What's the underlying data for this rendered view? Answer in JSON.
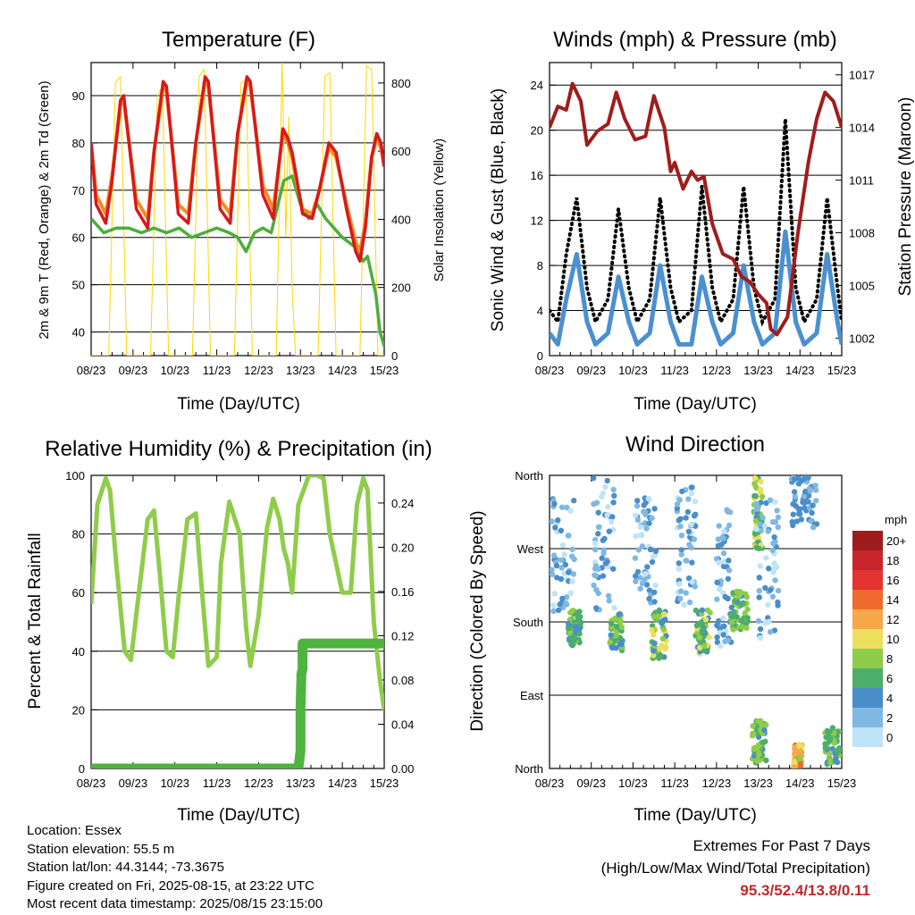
{
  "colors": {
    "t2m": "#d7191c",
    "t9m": "#f68a1e",
    "td2m": "#4cae3a",
    "solar": "#ffd700",
    "wind": "#4a90d0",
    "gust": "#000000",
    "pressure": "#a01c1c",
    "rh": "#8fcc4a",
    "precip": "#4fb340"
  },
  "footer": {
    "location": "Location: Essex",
    "elevation": "Station elevation: 55.5 m",
    "latlon": "Station lat/lon: 44.3144; -73.3675",
    "created": "Figure created on Fri, 2025-08-15, at 23:22 UTC",
    "recent": "Most recent data timestamp: 2025/08/15 23:15:00"
  },
  "extremes": {
    "heading": "Extremes For Past 7 Days",
    "subheading": "(High/Low/Max Wind/Total Precipitation)",
    "values": "95.3/52.4/13.8/0.11"
  },
  "chart_data": [
    {
      "id": "temperature",
      "type": "line",
      "title": "Temperature (F)",
      "xlabel": "Time (Day/UTC)",
      "ylabel": "2m & 9m T (Red, Orange) & 2m Td (Green)",
      "ylabel_right": "Solar Insolation (Yellow)",
      "x_ticks": [
        "08/23",
        "09/23",
        "10/23",
        "11/23",
        "12/23",
        "13/23",
        "14/23",
        "15/23"
      ],
      "xlim": [
        0,
        7
      ],
      "ylim": [
        35,
        97
      ],
      "yticks": [
        40,
        50,
        60,
        70,
        80,
        90
      ],
      "ylim_right": [
        0,
        860
      ],
      "yticks_right": [
        0,
        200,
        400,
        600,
        800
      ],
      "grid": true,
      "series": [
        {
          "name": "2m T",
          "axis": "left",
          "color_key": "t2m",
          "x": [
            0,
            0.12,
            0.35,
            0.5,
            0.7,
            0.78,
            1.08,
            1.35,
            1.5,
            1.72,
            1.8,
            2.08,
            2.32,
            2.5,
            2.72,
            2.8,
            3.08,
            3.32,
            3.5,
            3.72,
            3.8,
            4.1,
            4.35,
            4.48,
            4.58,
            4.7,
            4.8,
            4.9,
            5.05,
            5.28,
            5.45,
            5.68,
            5.85,
            6.1,
            6.32,
            6.42,
            6.55,
            6.7,
            6.82,
            6.92,
            7
          ],
          "y": [
            80,
            67,
            63,
            72,
            89,
            90,
            66,
            62,
            78,
            93,
            92,
            65,
            63,
            80,
            94,
            93,
            66,
            63,
            82,
            94,
            93,
            69,
            64,
            75,
            83,
            81,
            78,
            73,
            65,
            64,
            70,
            80,
            78,
            66,
            57,
            55,
            62,
            77,
            82,
            80,
            75
          ]
        },
        {
          "name": "9m T",
          "axis": "left",
          "color_key": "t9m",
          "x": [
            0,
            0.12,
            0.35,
            0.5,
            0.7,
            0.78,
            1.08,
            1.35,
            1.5,
            1.72,
            1.8,
            2.08,
            2.32,
            2.5,
            2.72,
            2.8,
            3.08,
            3.32,
            3.5,
            3.72,
            3.8,
            4.1,
            4.35,
            4.48,
            4.58,
            4.7,
            4.8,
            4.9,
            5.05,
            5.28,
            5.45,
            5.68,
            5.85,
            6.1,
            6.32,
            6.42,
            6.55,
            6.7,
            6.82,
            6.92,
            7
          ],
          "y": [
            80,
            69,
            65,
            73,
            88,
            89,
            68,
            64,
            78,
            92,
            91,
            67,
            65,
            80,
            93,
            92,
            68,
            65,
            82,
            93,
            92,
            71,
            66,
            75,
            82,
            80,
            77,
            72,
            66,
            65,
            70,
            79,
            77,
            67,
            59,
            57,
            63,
            77,
            81,
            79,
            75
          ]
        },
        {
          "name": "2m Td",
          "axis": "left",
          "color_key": "td2m",
          "x": [
            0,
            0.3,
            0.6,
            0.9,
            1.2,
            1.5,
            1.8,
            2.1,
            2.4,
            2.7,
            3.0,
            3.3,
            3.5,
            3.7,
            3.9,
            4.1,
            4.3,
            4.6,
            4.8,
            5.0,
            5.2,
            5.4,
            5.6,
            5.8,
            6.0,
            6.3,
            6.5,
            6.6,
            6.8,
            6.9,
            7
          ],
          "y": [
            64,
            61,
            62,
            62,
            61,
            62,
            61,
            62,
            60,
            61,
            62,
            61,
            60,
            57,
            61,
            62,
            61,
            72,
            73,
            67,
            64,
            67,
            64,
            62,
            60,
            58,
            55,
            56,
            48,
            40,
            37
          ]
        },
        {
          "name": "Solar insolation",
          "axis": "right",
          "color_key": "solar",
          "x": [
            0,
            0.42,
            0.58,
            0.7,
            0.85,
            1.0,
            1.42,
            1.58,
            1.7,
            1.85,
            2.0,
            2.42,
            2.58,
            2.7,
            2.85,
            3.0,
            3.42,
            3.58,
            3.7,
            3.85,
            4.0,
            4.42,
            4.56,
            4.65,
            4.72,
            4.8,
            4.88,
            5.0,
            5.42,
            5.58,
            5.7,
            5.85,
            6.0,
            6.42,
            6.58,
            6.7,
            6.85,
            7
          ],
          "y": [
            0,
            0,
            800,
            820,
            0,
            0,
            0,
            760,
            790,
            0,
            0,
            0,
            820,
            840,
            0,
            0,
            0,
            800,
            810,
            0,
            0,
            0,
            860,
            350,
            700,
            200,
            0,
            0,
            0,
            820,
            830,
            0,
            0,
            0,
            850,
            840,
            0,
            0
          ]
        }
      ]
    },
    {
      "id": "winds",
      "type": "line",
      "title": "Winds (mph) & Pressure (mb)",
      "xlabel": "Time (Day/UTC)",
      "ylabel": "Sonic Wind & Gust (Blue, Black)",
      "ylabel_right": "Station Pressure (Maroon)",
      "x_ticks": [
        "08/23",
        "09/23",
        "10/23",
        "11/23",
        "12/23",
        "13/23",
        "14/23",
        "15/23"
      ],
      "xlim": [
        0,
        7
      ],
      "ylim": [
        0,
        26
      ],
      "yticks": [
        0,
        4,
        8,
        12,
        16,
        20,
        24
      ],
      "ylim_right": [
        1001,
        1017.7
      ],
      "yticks_right": [
        1002,
        1005,
        1008,
        1011,
        1014,
        1017
      ],
      "grid": true,
      "series": [
        {
          "name": "Sonic wind",
          "axis": "left",
          "color_key": "wind",
          "x": [
            0,
            0.2,
            0.4,
            0.65,
            0.9,
            1.1,
            1.4,
            1.65,
            1.9,
            2.1,
            2.4,
            2.65,
            2.9,
            3.1,
            3.4,
            3.65,
            3.9,
            4.1,
            4.4,
            4.65,
            4.9,
            5.1,
            5.4,
            5.65,
            5.9,
            6.1,
            6.4,
            6.65,
            6.9,
            7
          ],
          "y": [
            2,
            1,
            5,
            9,
            3,
            1,
            2,
            7,
            3,
            1,
            2,
            8,
            3,
            1,
            1,
            7,
            3,
            1,
            2,
            8,
            3,
            1,
            2,
            11,
            3,
            1,
            2,
            9,
            3,
            1
          ]
        },
        {
          "name": "Gust",
          "axis": "left",
          "color_key": "gust",
          "x": [
            0,
            0.2,
            0.4,
            0.65,
            0.9,
            1.1,
            1.4,
            1.65,
            1.9,
            2.1,
            2.4,
            2.65,
            2.9,
            3.1,
            3.4,
            3.65,
            3.9,
            4.1,
            4.4,
            4.65,
            4.9,
            5.1,
            5.4,
            5.65,
            5.9,
            6.1,
            6.4,
            6.65,
            6.9,
            7
          ],
          "y": [
            4,
            3,
            9,
            14,
            6,
            3,
            5,
            13,
            6,
            3,
            5,
            14,
            6,
            3,
            4,
            15,
            6,
            3,
            5,
            15,
            6,
            3,
            5,
            21,
            6,
            3,
            5,
            14,
            6,
            3
          ]
        },
        {
          "name": "Station pressure",
          "axis": "right",
          "color_key": "pressure",
          "x": [
            0,
            0.2,
            0.4,
            0.55,
            0.75,
            0.9,
            1.15,
            1.4,
            1.6,
            1.8,
            2.05,
            2.3,
            2.5,
            2.75,
            2.9,
            3.0,
            3.2,
            3.4,
            3.55,
            3.7,
            3.9,
            4.15,
            4.4,
            4.6,
            4.8,
            5.0,
            5.2,
            5.3,
            5.45,
            5.7,
            5.95,
            6.2,
            6.4,
            6.6,
            6.8,
            7
          ],
          "y": [
            1014,
            1015.2,
            1015,
            1016.5,
            1015.5,
            1013,
            1013.8,
            1014.2,
            1016,
            1014.5,
            1013.3,
            1013.5,
            1015.8,
            1014,
            1011.5,
            1012,
            1010.5,
            1011.5,
            1011,
            1011.2,
            1008.5,
            1006.8,
            1006.5,
            1005.5,
            1005.2,
            1004.5,
            1004,
            1002.5,
            1002.2,
            1003.2,
            1008,
            1012,
            1014.5,
            1016,
            1015.5,
            1014
          ]
        }
      ]
    },
    {
      "id": "humidity",
      "type": "line",
      "title": "Relative Humidity (%) & Precipitation (in)",
      "xlabel": "Time (Day/UTC)",
      "ylabel": "Percent & Total Rainfall",
      "x_ticks": [
        "08/23",
        "09/23",
        "10/23",
        "11/23",
        "12/23",
        "13/23",
        "14/23",
        "15/23"
      ],
      "xlim": [
        0,
        7
      ],
      "ylim": [
        0,
        100
      ],
      "yticks": [
        0,
        20,
        40,
        60,
        80,
        100
      ],
      "ylim_right": [
        0,
        0.265
      ],
      "yticks_right": [
        0,
        0.04,
        0.08,
        0.12,
        0.16,
        0.2,
        0.24
      ],
      "grid": true,
      "series": [
        {
          "name": "Relative humidity",
          "axis": "left",
          "color_key": "rh",
          "x": [
            0,
            0.15,
            0.35,
            0.45,
            0.6,
            0.8,
            0.95,
            1.1,
            1.35,
            1.5,
            1.65,
            1.8,
            1.95,
            2.1,
            2.3,
            2.5,
            2.65,
            2.8,
            3.0,
            3.1,
            3.3,
            3.55,
            3.7,
            3.8,
            4.0,
            4.2,
            4.35,
            4.5,
            4.6,
            4.7,
            4.8,
            4.95,
            5.2,
            5.4,
            5.55,
            5.7,
            5.85,
            6.0,
            6.2,
            6.35,
            6.5,
            6.6,
            6.75,
            6.9,
            7
          ],
          "y": [
            56,
            90,
            99,
            95,
            70,
            40,
            37,
            55,
            85,
            88,
            65,
            40,
            38,
            60,
            85,
            87,
            60,
            35,
            38,
            70,
            91,
            80,
            48,
            35,
            52,
            82,
            92,
            85,
            75,
            70,
            60,
            90,
            100,
            100,
            99,
            80,
            70,
            60,
            60,
            90,
            99,
            95,
            50,
            30,
            20
          ]
        },
        {
          "name": "Total precipitation",
          "axis": "right",
          "color_key": "precip",
          "x": [
            0,
            4.95,
            5.0,
            5.0,
            5.02,
            5.02,
            5.05,
            5.05,
            7
          ],
          "y": [
            0,
            0,
            0.016,
            0.055,
            0.08,
            0.085,
            0.09,
            0.113,
            0.113
          ]
        }
      ]
    },
    {
      "id": "direction",
      "type": "scatter",
      "title": "Wind Direction",
      "xlabel": "Time (Day/UTC)",
      "ylabel": "Direction (Colored By Speed)",
      "x_ticks": [
        "08/23",
        "09/23",
        "10/23",
        "11/23",
        "12/23",
        "13/23",
        "14/23",
        "15/23"
      ],
      "xlim": [
        0,
        7
      ],
      "ylim": [
        0,
        360
      ],
      "yticks": [
        0,
        90,
        180,
        270,
        360
      ],
      "ytick_labels": [
        "North",
        "East",
        "South",
        "West",
        "North"
      ],
      "grid": true,
      "legend": {
        "title": "mph",
        "labels": [
          "20+",
          "18",
          "16",
          "14",
          "12",
          "10",
          "8",
          "6",
          "4",
          "2",
          "0"
        ],
        "colors": [
          "#9e1b1e",
          "#c8262b",
          "#e3342f",
          "#ee6a2e",
          "#f6a74a",
          "#ecdf5e",
          "#8fcc4a",
          "#4cae6a",
          "#4a8ec9",
          "#7fb8e3",
          "#bfe3f7"
        ]
      },
      "clusters": [
        {
          "x": [
            0.05,
            0.6
          ],
          "dir": [
            190,
            340
          ],
          "speed": [
            0,
            5
          ]
        },
        {
          "x": [
            0.45,
            0.75
          ],
          "dir": [
            150,
            195
          ],
          "speed": [
            4,
            9
          ]
        },
        {
          "x": [
            1.05,
            1.55
          ],
          "dir": [
            195,
            360
          ],
          "speed": [
            0,
            5
          ]
        },
        {
          "x": [
            1.45,
            1.75
          ],
          "dir": [
            145,
            190
          ],
          "speed": [
            4,
            9
          ]
        },
        {
          "x": [
            2.05,
            2.55
          ],
          "dir": [
            200,
            340
          ],
          "speed": [
            0,
            5
          ]
        },
        {
          "x": [
            2.45,
            2.8
          ],
          "dir": [
            135,
            195
          ],
          "speed": [
            4,
            11
          ]
        },
        {
          "x": [
            3.05,
            3.5
          ],
          "dir": [
            200,
            350
          ],
          "speed": [
            0,
            5
          ]
        },
        {
          "x": [
            3.5,
            3.85
          ],
          "dir": [
            140,
            195
          ],
          "speed": [
            4,
            10
          ]
        },
        {
          "x": [
            4.0,
            4.35
          ],
          "dir": [
            150,
            320
          ],
          "speed": [
            0,
            5
          ]
        },
        {
          "x": [
            4.35,
            4.75
          ],
          "dir": [
            170,
            220
          ],
          "speed": [
            4,
            9
          ]
        },
        {
          "x": [
            4.9,
            5.1
          ],
          "dir": [
            270,
            360
          ],
          "speed": [
            4,
            11
          ]
        },
        {
          "x": [
            4.95,
            5.5
          ],
          "dir": [
            160,
            330
          ],
          "speed": [
            0,
            5
          ]
        },
        {
          "x": [
            5.8,
            6.4
          ],
          "dir": [
            290,
            360
          ],
          "speed": [
            2,
            5
          ]
        },
        {
          "x": [
            5.85,
            6.05
          ],
          "dir": [
            0,
            30
          ],
          "speed": [
            8,
            15
          ]
        },
        {
          "x": [
            6.6,
            6.95
          ],
          "dir": [
            5,
            50
          ],
          "speed": [
            4,
            9
          ]
        },
        {
          "x": [
            4.85,
            5.2
          ],
          "dir": [
            5,
            60
          ],
          "speed": [
            4,
            9
          ]
        }
      ]
    }
  ]
}
